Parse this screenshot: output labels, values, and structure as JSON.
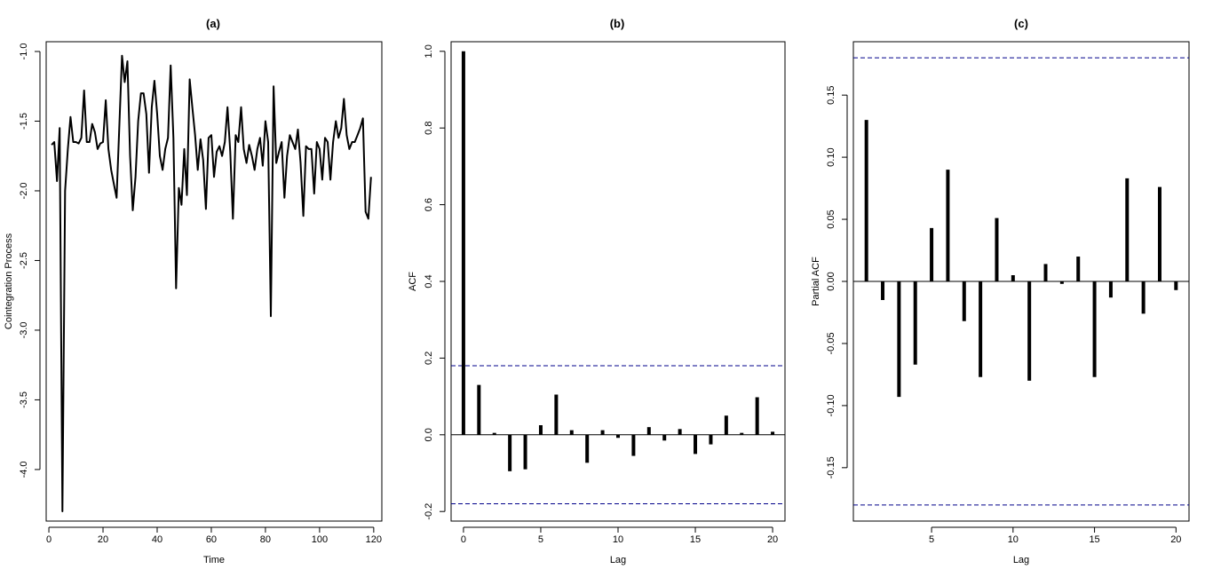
{
  "chart_data": [
    {
      "type": "line",
      "title": "(a)",
      "xlabel": "Time",
      "ylabel": "Cointegration Process",
      "xlim": [
        -1,
        123
      ],
      "ylim": [
        -4.37,
        -0.93
      ],
      "xticks": [
        0,
        20,
        40,
        60,
        80,
        100,
        120
      ],
      "xtick_labels": [
        "0",
        "20",
        "40",
        "60",
        "80",
        "100",
        "120"
      ],
      "yticks": [
        -4.0,
        -3.5,
        -3.0,
        -2.5,
        -2.0,
        -1.5,
        -1.0
      ],
      "ytick_labels": [
        "-4.0",
        "-3.5",
        "-3.0",
        "-2.5",
        "-2.0",
        "-1.5",
        "-1.0"
      ],
      "grid": false,
      "line_color": "#000000",
      "x": [
        1,
        2,
        3,
        4,
        5,
        6,
        7,
        8,
        9,
        10,
        11,
        12,
        13,
        14,
        15,
        16,
        17,
        18,
        19,
        20,
        21,
        22,
        23,
        24,
        25,
        26,
        27,
        28,
        29,
        30,
        31,
        32,
        33,
        34,
        35,
        36,
        37,
        38,
        39,
        40,
        41,
        42,
        43,
        44,
        45,
        46,
        47,
        48,
        49,
        50,
        51,
        52,
        53,
        54,
        55,
        56,
        57,
        58,
        59,
        60,
        61,
        62,
        63,
        64,
        65,
        66,
        67,
        68,
        69,
        70,
        71,
        72,
        73,
        74,
        75,
        76,
        77,
        78,
        79,
        80,
        81,
        82,
        83,
        84,
        85,
        86,
        87,
        88,
        89,
        90,
        91,
        92,
        93,
        94,
        95,
        96,
        97,
        98,
        99,
        100,
        101,
        102,
        103,
        104,
        105,
        106,
        107,
        108,
        109,
        110,
        111,
        112,
        113,
        114,
        115,
        116,
        117,
        118,
        119
      ],
      "values": [
        -1.67,
        -1.65,
        -1.93,
        -1.55,
        -4.3,
        -2.0,
        -1.7,
        -1.47,
        -1.65,
        -1.65,
        -1.66,
        -1.62,
        -1.28,
        -1.65,
        -1.65,
        -1.52,
        -1.58,
        -1.7,
        -1.66,
        -1.65,
        -1.35,
        -1.7,
        -1.85,
        -1.95,
        -2.05,
        -1.55,
        -1.03,
        -1.22,
        -1.07,
        -1.75,
        -2.14,
        -1.9,
        -1.5,
        -1.3,
        -1.3,
        -1.45,
        -1.87,
        -1.4,
        -1.21,
        -1.45,
        -1.75,
        -1.85,
        -1.7,
        -1.62,
        -1.1,
        -1.62,
        -2.7,
        -1.98,
        -2.1,
        -1.7,
        -2.03,
        -1.2,
        -1.4,
        -1.6,
        -1.85,
        -1.63,
        -1.78,
        -2.13,
        -1.62,
        -1.6,
        -1.9,
        -1.72,
        -1.68,
        -1.75,
        -1.65,
        -1.4,
        -1.72,
        -2.2,
        -1.6,
        -1.65,
        -1.4,
        -1.7,
        -1.8,
        -1.67,
        -1.75,
        -1.85,
        -1.7,
        -1.62,
        -1.82,
        -1.5,
        -1.65,
        -2.9,
        -1.25,
        -1.8,
        -1.72,
        -1.65,
        -2.05,
        -1.75,
        -1.6,
        -1.65,
        -1.7,
        -1.56,
        -1.8,
        -2.18,
        -1.68,
        -1.7,
        -1.7,
        -2.02,
        -1.65,
        -1.7,
        -1.92,
        -1.62,
        -1.65,
        -1.92,
        -1.65,
        -1.5,
        -1.62,
        -1.55,
        -1.34,
        -1.6,
        -1.7,
        -1.65,
        -1.65,
        -1.6,
        -1.55,
        -1.48,
        -2.15,
        -2.2,
        -1.9
      ]
    },
    {
      "type": "bar",
      "title": "(b)",
      "xlabel": "Lag",
      "ylabel": "ACF",
      "xlim": [
        -0.8,
        20.8
      ],
      "ylim": [
        -0.225,
        1.025
      ],
      "xticks": [
        0,
        5,
        10,
        15,
        20
      ],
      "xtick_labels": [
        "0",
        "5",
        "10",
        "15",
        "20"
      ],
      "yticks": [
        -0.2,
        0.0,
        0.2,
        0.4,
        0.6,
        0.8,
        1.0
      ],
      "ytick_labels": [
        "-0.2",
        "0.0",
        "0.2",
        "0.4",
        "0.6",
        "0.8",
        "1.0"
      ],
      "grid": false,
      "confidence_bounds": [
        0.18,
        -0.18
      ],
      "bound_color": "#00008b",
      "x": [
        0,
        1,
        2,
        3,
        4,
        5,
        6,
        7,
        8,
        9,
        10,
        11,
        12,
        13,
        14,
        15,
        16,
        17,
        18,
        19,
        20
      ],
      "values": [
        1.0,
        0.13,
        0.005,
        -0.095,
        -0.09,
        0.025,
        0.105,
        0.012,
        -0.073,
        0.012,
        -0.008,
        -0.055,
        0.02,
        -0.015,
        0.015,
        -0.05,
        -0.025,
        0.05,
        0.005,
        0.098,
        0.008
      ]
    },
    {
      "type": "bar",
      "title": "(c)",
      "xlabel": "Lag",
      "ylabel": "Partial ACF",
      "xlim": [
        0.2,
        20.8
      ],
      "ylim": [
        -0.193,
        0.193
      ],
      "xticks": [
        5,
        10,
        15,
        20
      ],
      "xtick_labels": [
        "5",
        "10",
        "15",
        "20"
      ],
      "yticks": [
        -0.15,
        -0.1,
        -0.05,
        0.0,
        0.05,
        0.1,
        0.15
      ],
      "ytick_labels": [
        "-0.15",
        "-0.10",
        "-0.05",
        "0.00",
        "0.05",
        "0.10",
        "0.15"
      ],
      "grid": false,
      "confidence_bounds": [
        0.18,
        -0.18
      ],
      "bound_color": "#00008b",
      "x": [
        1,
        2,
        3,
        4,
        5,
        6,
        7,
        8,
        9,
        10,
        11,
        12,
        13,
        14,
        15,
        16,
        17,
        18,
        19,
        20
      ],
      "values": [
        0.13,
        -0.015,
        -0.093,
        -0.067,
        0.043,
        0.09,
        -0.032,
        -0.077,
        0.051,
        0.005,
        -0.08,
        0.014,
        -0.002,
        0.02,
        -0.077,
        -0.013,
        0.083,
        -0.026,
        0.076,
        -0.007
      ]
    }
  ]
}
